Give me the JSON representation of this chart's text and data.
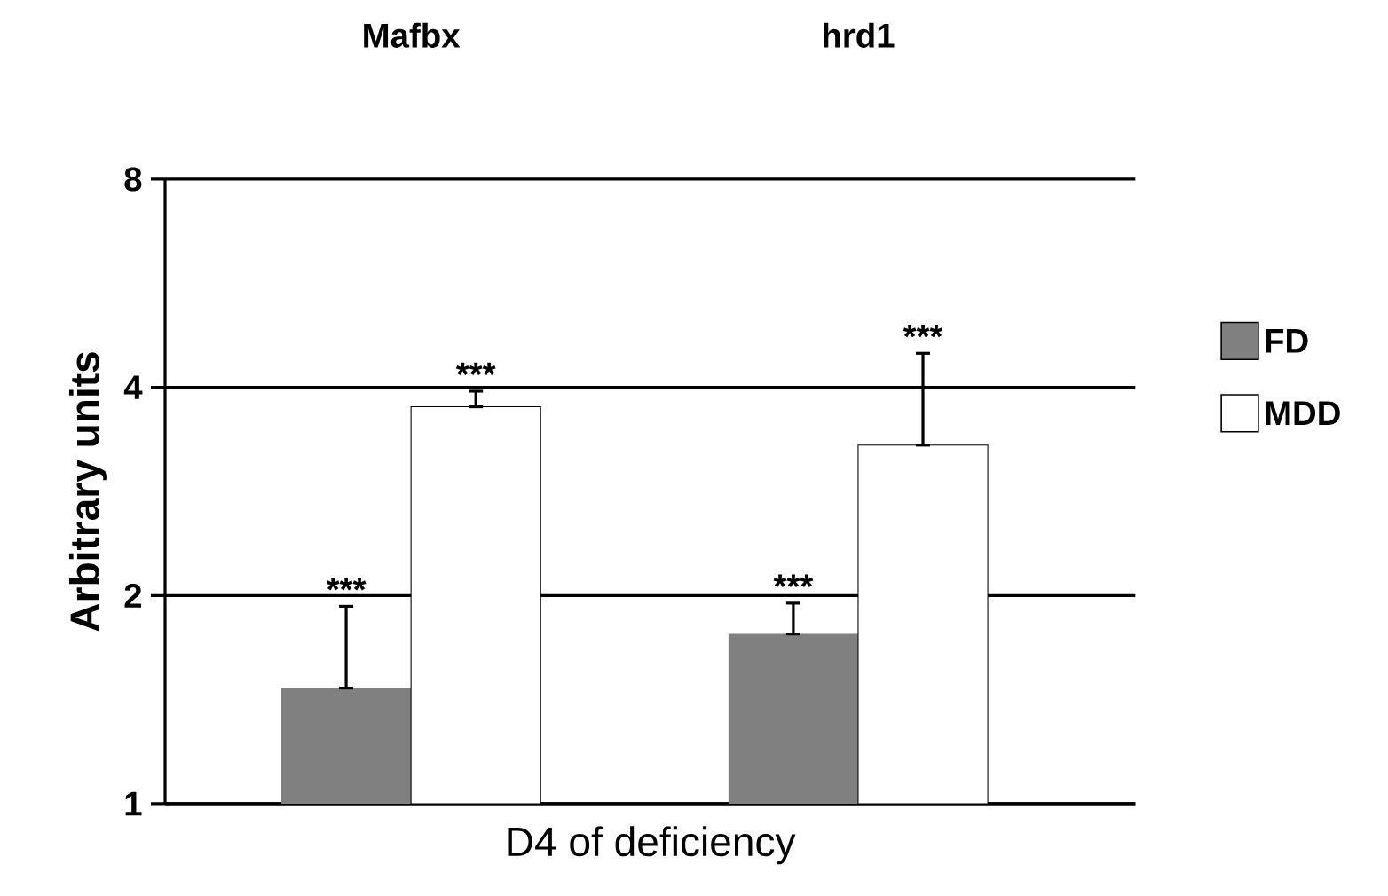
{
  "chart_data": {
    "type": "bar",
    "categories": [
      "Mafbx",
      "hrd1"
    ],
    "xlabel": "D4 of deficiency",
    "ylabel": "Arbitrary units",
    "log": "y",
    "ylim": [
      1,
      8
    ],
    "yticks": [
      1,
      2,
      4,
      8
    ],
    "grid": "y",
    "legend": "right",
    "series": [
      {
        "name": "FD",
        "color": "#808080",
        "values": [
          1.47,
          1.76
        ],
        "errors": [
          [
            1.47,
            1.93
          ],
          [
            1.76,
            1.95
          ]
        ],
        "value_labels": [
          "***",
          "***"
        ]
      },
      {
        "name": "MDD",
        "color": "#ffffff",
        "values": [
          3.75,
          3.3
        ],
        "errors": [
          [
            3.75,
            3.95
          ],
          [
            3.3,
            4.48
          ]
        ],
        "value_labels": [
          "***",
          "***"
        ]
      }
    ]
  }
}
